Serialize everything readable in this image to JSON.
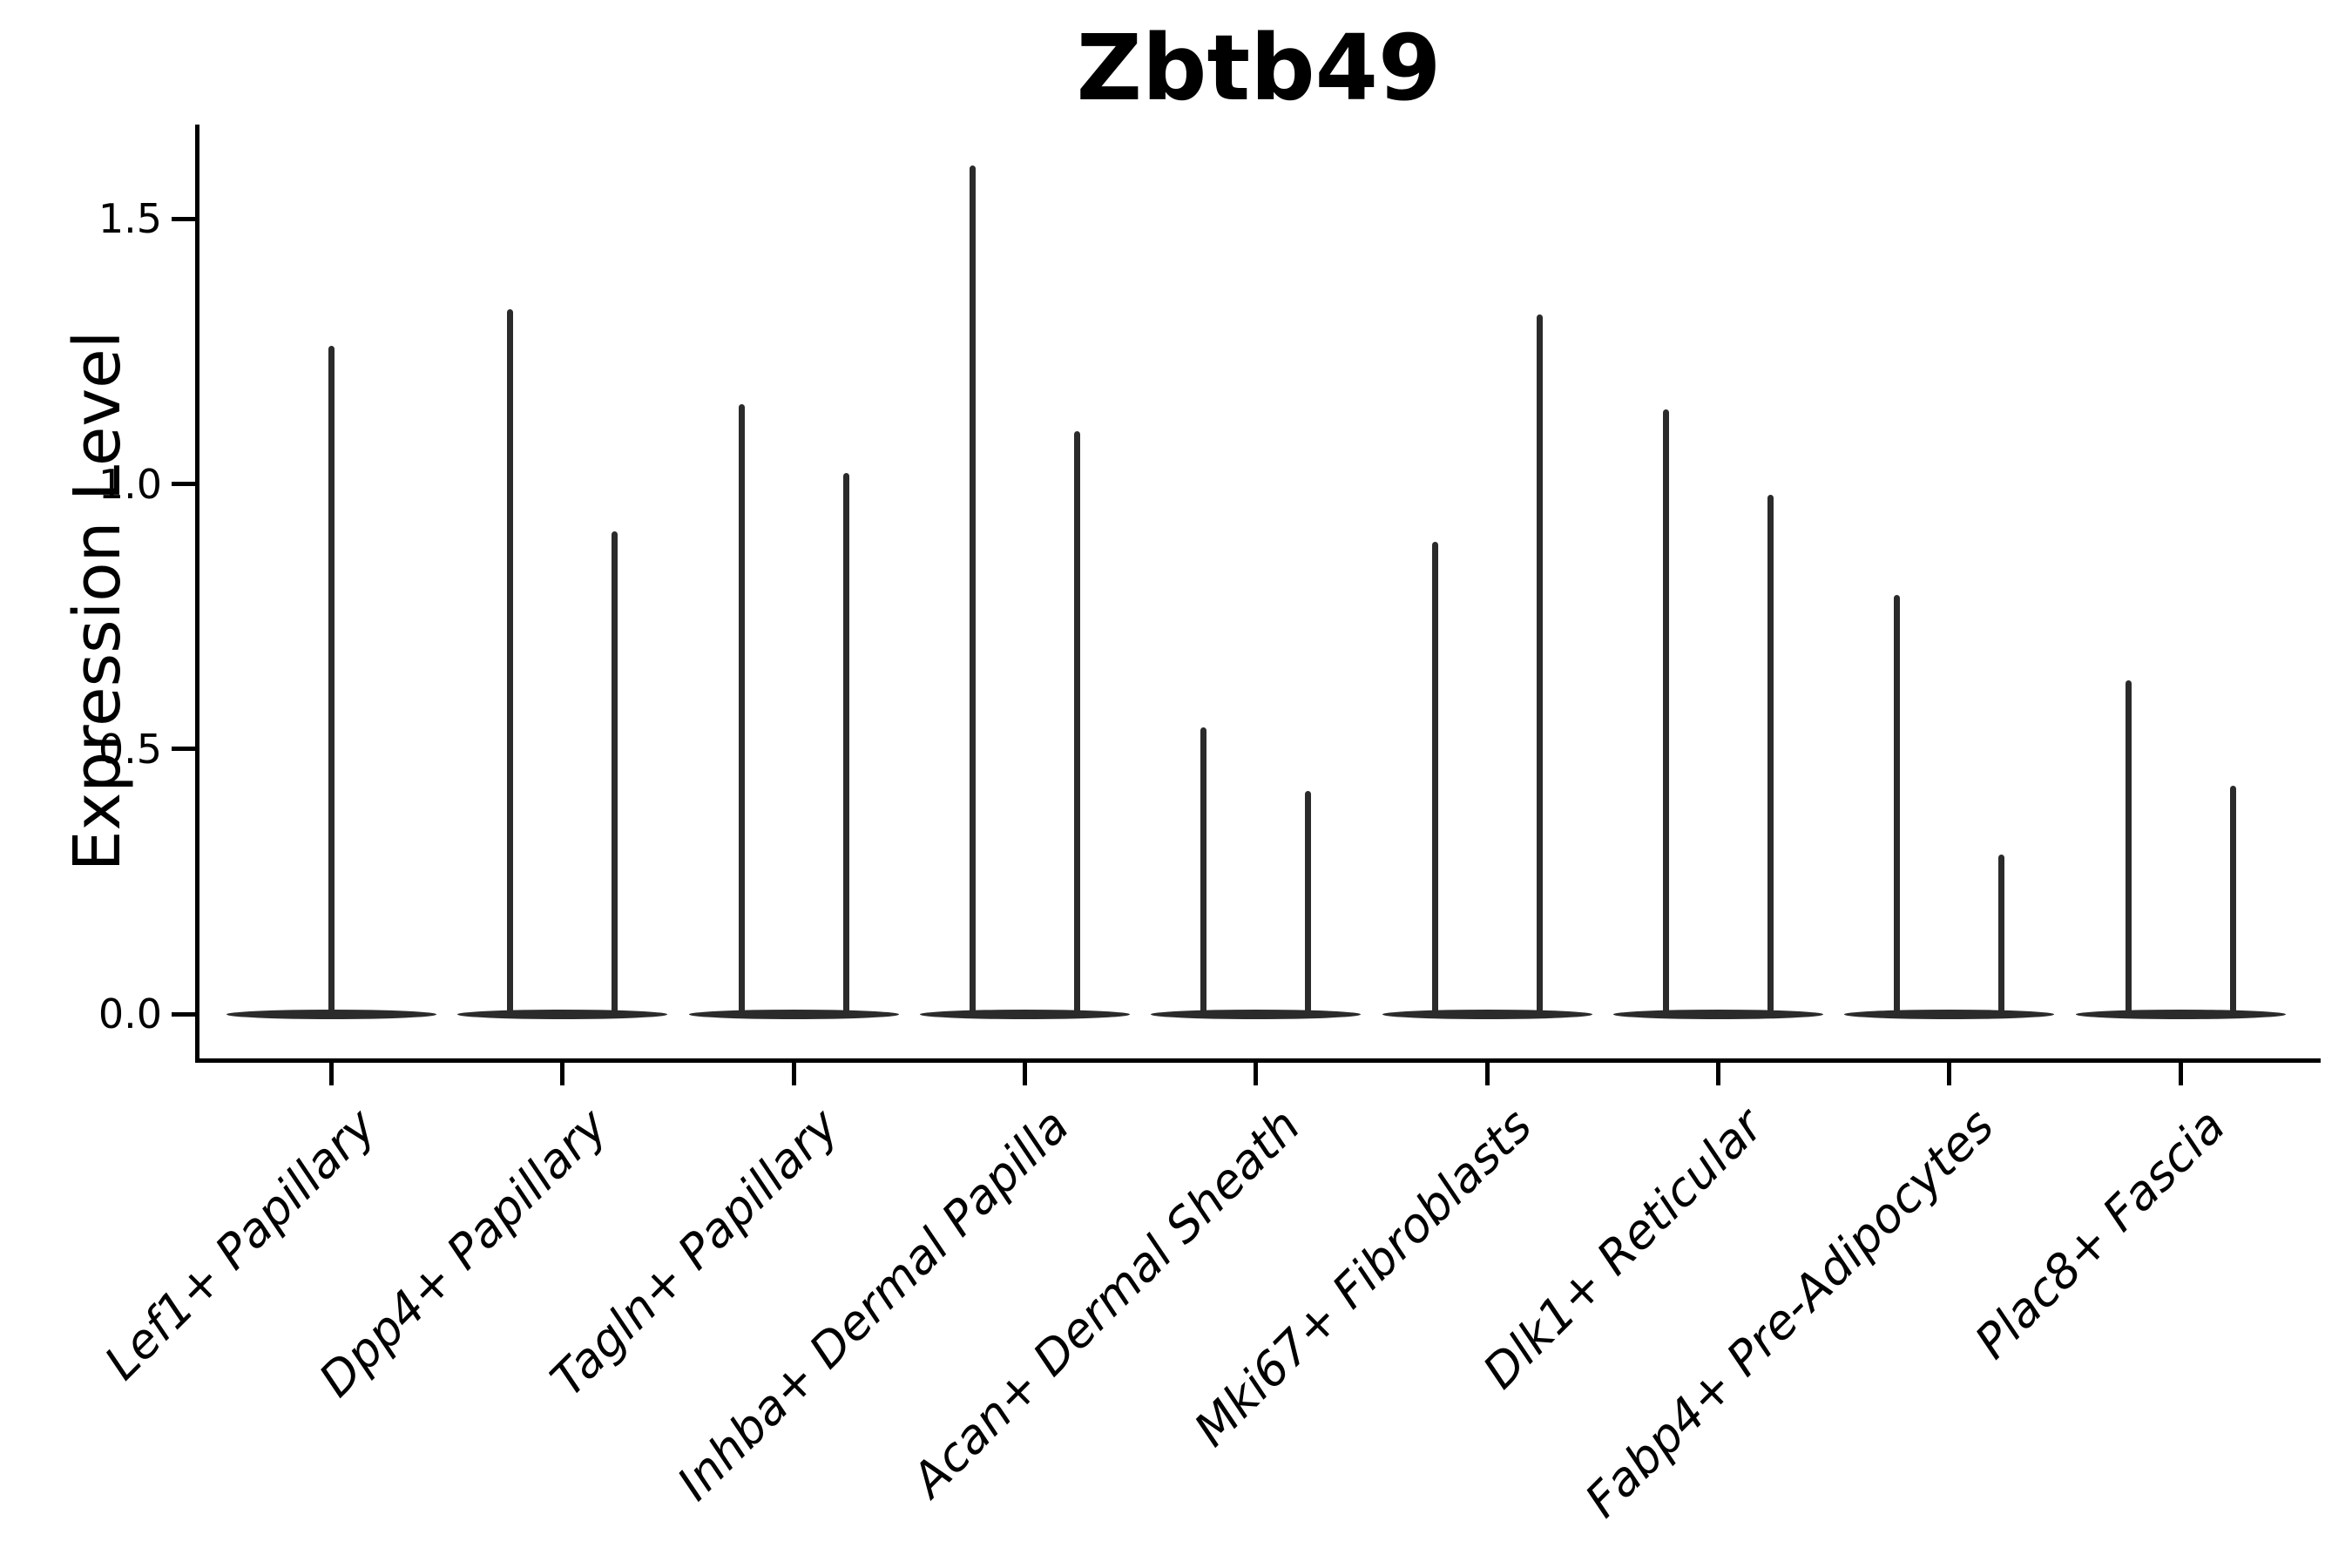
{
  "colors": {
    "violin": "#2b2b2b",
    "axis": "#000000",
    "text": "#000000",
    "background": "#ffffff"
  },
  "chart_data": {
    "type": "violin",
    "title": "Zbtb49",
    "xlabel": "",
    "ylabel": "Expression Level",
    "ytick_values": [
      0.0,
      0.5,
      1.0,
      1.5
    ],
    "ytick_labels": [
      "0.0",
      "0.5",
      "1.0",
      "1.5"
    ],
    "ylim": [
      -0.084,
      1.674
    ],
    "grid": false,
    "legend": false,
    "categories": [
      "Lef1+ Papillary",
      "Dpp4+ Papillary",
      "Tagln+ Papillary",
      "Inhba+ Dermal Papilla",
      "Acan+ Dermal Sheath",
      "Mki67+ Fibroblasts",
      "Dlk1+ Reticular",
      "Fabp4+ Pre-Adipocytes",
      "Plac8+ Fascia"
    ],
    "violins": [
      {
        "category": "Lef1+ Papillary",
        "baseline_value": 0.0,
        "spikes": [
          {
            "offset_frac": 0.0,
            "max": 1.26
          }
        ]
      },
      {
        "category": "Dpp4+ Papillary",
        "baseline_value": 0.0,
        "spikes": [
          {
            "offset_frac": -0.226,
            "max": 1.33
          },
          {
            "offset_frac": 0.226,
            "max": 0.91
          }
        ]
      },
      {
        "category": "Tagln+ Papillary",
        "baseline_value": 0.0,
        "spikes": [
          {
            "offset_frac": -0.226,
            "max": 1.15
          },
          {
            "offset_frac": 0.226,
            "max": 1.02
          }
        ]
      },
      {
        "category": "Inhba+ Dermal Papilla",
        "baseline_value": 0.0,
        "spikes": [
          {
            "offset_frac": -0.226,
            "max": 1.6
          },
          {
            "offset_frac": 0.226,
            "max": 1.1
          }
        ]
      },
      {
        "category": "Acan+ Dermal Sheath",
        "baseline_value": 0.0,
        "spikes": [
          {
            "offset_frac": -0.226,
            "max": 0.54
          },
          {
            "offset_frac": 0.226,
            "max": 0.42
          }
        ]
      },
      {
        "category": "Mki67+ Fibroblasts",
        "baseline_value": 0.0,
        "spikes": [
          {
            "offset_frac": -0.226,
            "max": 0.89
          },
          {
            "offset_frac": 0.226,
            "max": 1.32
          }
        ]
      },
      {
        "category": "Dlk1+ Reticular",
        "baseline_value": 0.0,
        "spikes": [
          {
            "offset_frac": -0.226,
            "max": 1.14
          },
          {
            "offset_frac": 0.226,
            "max": 0.98
          }
        ]
      },
      {
        "category": "Fabp4+ Pre-Adipocytes",
        "baseline_value": 0.0,
        "spikes": [
          {
            "offset_frac": -0.226,
            "max": 0.79
          },
          {
            "offset_frac": 0.226,
            "max": 0.3
          }
        ]
      },
      {
        "category": "Plac8+ Fascia",
        "baseline_value": 0.0,
        "spikes": [
          {
            "offset_frac": -0.226,
            "max": 0.63
          },
          {
            "offset_frac": 0.226,
            "max": 0.43
          }
        ]
      }
    ],
    "violin_width_frac": 0.908
  }
}
